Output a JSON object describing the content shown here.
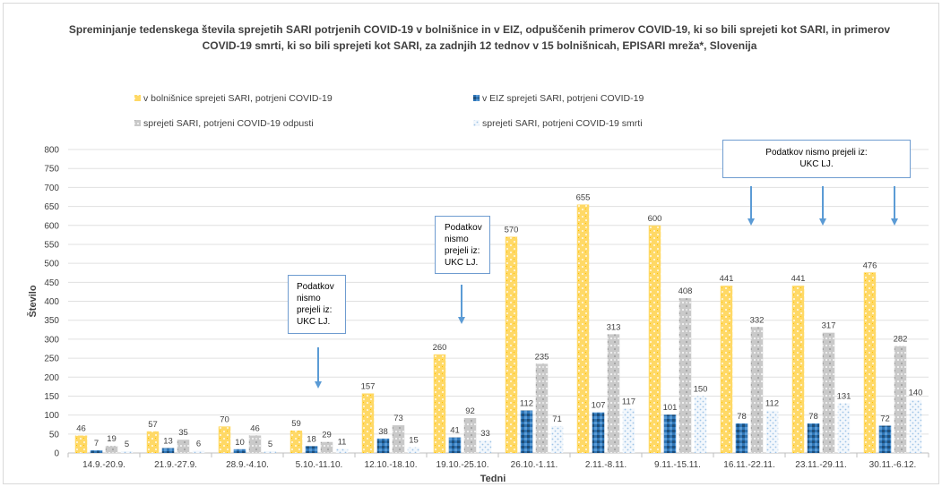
{
  "chart_data": {
    "type": "bar",
    "title": "Spreminjanje tedenskega števila sprejetih SARI potrjenih COVID-19 v bolnišnice in v EIZ, odpuščenih primerov COVID-19, ki so bili sprejeti kot SARI, in primerov COVID-19 smrti, ki so bili sprejeti kot SARI, za zadnjih 12 tednov  v 15 bolnišnicah, EPISARI mreža*, Slovenija",
    "xlabel": "Tedni",
    "ylabel": "Število",
    "ylim": [
      0,
      800
    ],
    "ytick_step": 50,
    "legend_position": "top",
    "categories": [
      "14.9.-20.9.",
      "21.9.-27.9.",
      "28.9.-4.10.",
      "5.10.-11.10.",
      "12.10.-18.10.",
      "19.10.-25.10.",
      "26.10.-1.11.",
      "2.11.-8.11.",
      "9.11.-15.11.",
      "16.11.-22.11.",
      "23.11.-29.11.",
      "30.11.-6.12."
    ],
    "series": [
      {
        "name": "v bolnišnice sprejeti SARI, potrjeni COVID-19",
        "color": "#ffd966",
        "values": [
          46,
          57,
          70,
          59,
          157,
          260,
          570,
          655,
          600,
          441,
          441,
          476
        ]
      },
      {
        "name": "v EIZ sprejeti SARI, potrjeni COVID-19",
        "color": "#2e75b6",
        "values": [
          7,
          13,
          10,
          18,
          38,
          41,
          112,
          107,
          101,
          78,
          78,
          72
        ]
      },
      {
        "name": "sprejeti SARI, potrjeni COVID-19 odpusti",
        "color": "#bfbfbf",
        "values": [
          19,
          35,
          46,
          29,
          73,
          92,
          235,
          313,
          408,
          332,
          317,
          282
        ]
      },
      {
        "name": "sprejeti SARI, potrjeni COVID-19 smrti",
        "color": "#deebf7",
        "values": [
          5,
          6,
          5,
          11,
          15,
          33,
          71,
          117,
          150,
          112,
          131,
          140
        ]
      }
    ],
    "annotations": [
      {
        "text_lines": [
          "Podatkov",
          "nismo",
          "prejeli iz:",
          "UKC LJ."
        ],
        "arrow_categories": [
          "5.10.-11.10."
        ]
      },
      {
        "text_lines": [
          "Podatkov",
          "nismo",
          "prejeli iz:",
          "UKC LJ."
        ],
        "arrow_categories": [
          "19.10.-25.10."
        ]
      },
      {
        "text_lines": [
          "Podatkov nismo prejeli iz:",
          "UKC LJ."
        ],
        "arrow_categories": [
          "16.11.-22.11.",
          "23.11.-29.11.",
          "30.11.-6.12."
        ]
      }
    ]
  }
}
